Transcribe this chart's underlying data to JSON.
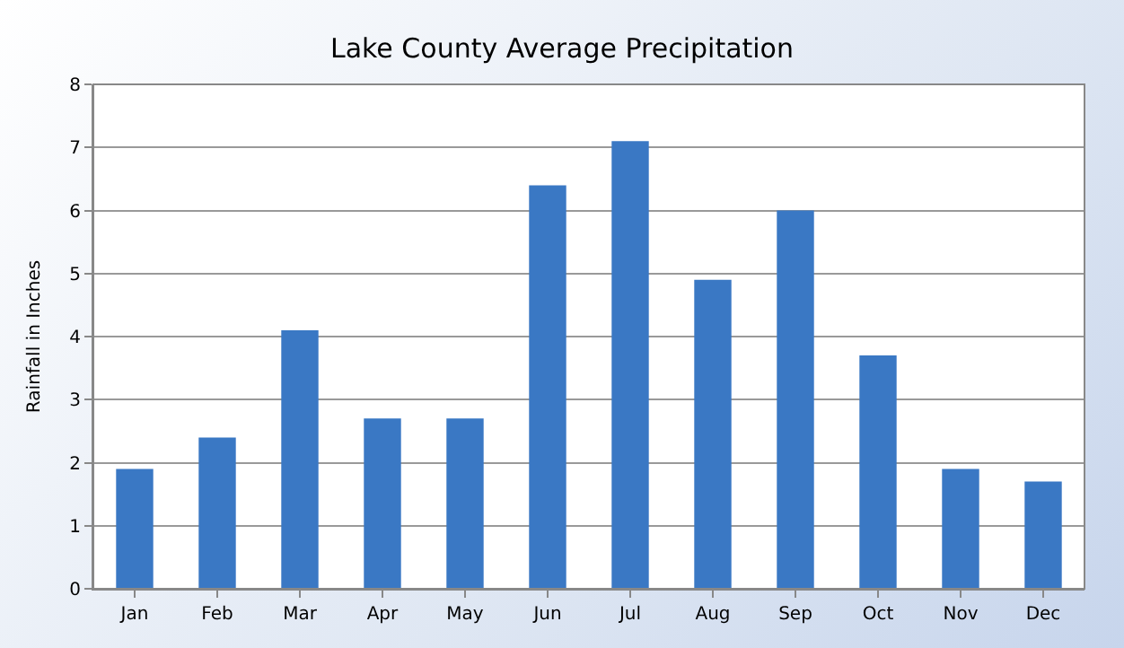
{
  "chart_data": {
    "type": "bar",
    "title": "Lake County Average Precipitation",
    "ylabel": "Rainfall in Inches",
    "categories": [
      "Jan",
      "Feb",
      "Mar",
      "Apr",
      "May",
      "Jun",
      "Jul",
      "Aug",
      "Sep",
      "Oct",
      "Nov",
      "Dec"
    ],
    "values": [
      1.9,
      2.4,
      4.1,
      2.7,
      2.7,
      6.4,
      7.1,
      4.9,
      6.0,
      3.7,
      1.9,
      1.7
    ],
    "color": "#3a78c4",
    "ylim": [
      0,
      8
    ],
    "yticks": [
      0,
      1,
      2,
      3,
      4,
      5,
      6,
      7,
      8
    ],
    "grid": "y"
  }
}
